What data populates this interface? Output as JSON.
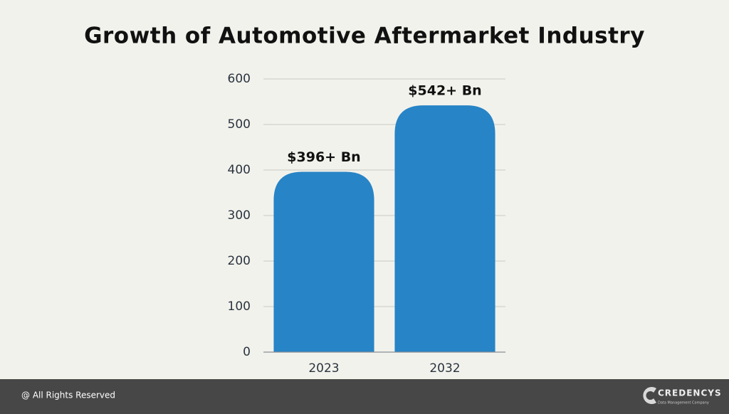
{
  "chart_data": {
    "type": "bar",
    "title": "Growth of Automotive Aftermarket Industry",
    "categories": [
      "2023",
      "2032"
    ],
    "values": [
      396,
      542
    ],
    "value_labels": [
      "$396+ Bn",
      "$542+ Bn"
    ],
    "color": "#2784c6",
    "ylim": [
      0,
      600
    ],
    "yticks": [
      0,
      100,
      200,
      300,
      400,
      500,
      600
    ],
    "grid": true
  },
  "footer": {
    "copyright": "@ All Rights Reserved",
    "logo": {
      "name": "CREDENCYS",
      "tagline": "Data Management Company"
    }
  }
}
